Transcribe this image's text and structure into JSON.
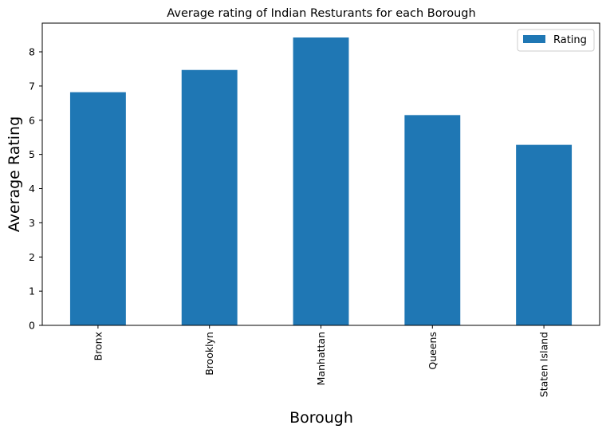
{
  "chart_data": {
    "type": "bar",
    "title": "Average rating of Indian Resturants for each Borough",
    "xlabel": "Borough",
    "ylabel": "Average Rating",
    "categories": [
      "Bronx",
      "Brooklyn",
      "Manhattan",
      "Queens",
      "Staten Island"
    ],
    "series": [
      {
        "name": "Rating",
        "values": [
          6.82,
          7.47,
          8.42,
          6.15,
          5.28
        ],
        "color": "#1f77b4"
      }
    ],
    "ylim": [
      0,
      8.84
    ],
    "yticks": [
      "0",
      "1",
      "2",
      "3",
      "4",
      "5",
      "6",
      "7",
      "8"
    ],
    "grid": false,
    "legend_position": "top-right"
  }
}
